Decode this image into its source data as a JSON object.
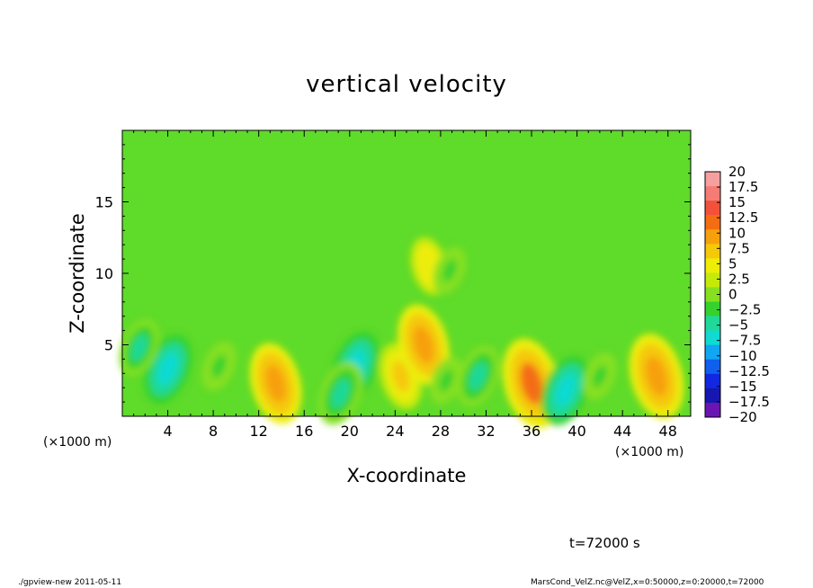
{
  "chart_data": {
    "type": "heatmap",
    "title": "vertical velocity",
    "xlabel": "X-coordinate",
    "ylabel": "Z-coordinate",
    "x_unit_label": "(×1000 m)",
    "y_unit_label": "(×1000 m)",
    "xlim": [
      0,
      50
    ],
    "ylim": [
      0,
      20
    ],
    "x_ticks": [
      "4",
      "8",
      "12",
      "16",
      "20",
      "24",
      "28",
      "32",
      "36",
      "40",
      "44",
      "48"
    ],
    "y_ticks": [
      "5",
      "10",
      "15"
    ],
    "colorbar": {
      "labels": [
        "20",
        "17.5",
        "15",
        "12.5",
        "10",
        "7.5",
        "5",
        "2.5",
        "0",
        "−2.5",
        "−5",
        "−7.5",
        "−10",
        "−12.5",
        "−15",
        "−17.5",
        "−20"
      ],
      "colors": [
        "#f59f9f",
        "#f57c74",
        "#f4513a",
        "#f46d12",
        "#f7a00d",
        "#f5c80a",
        "#eded08",
        "#c4ea0a",
        "#86e020",
        "#35d22e",
        "#1ed99a",
        "#10dad2",
        "#10a6f1",
        "#1060f0",
        "#1028e0",
        "#1616b0",
        "#6a14b2"
      ]
    },
    "features": [
      {
        "x": 4.0,
        "z": 3.3,
        "value": -8
      },
      {
        "x": 1.5,
        "z": 4.8,
        "value": -5
      },
      {
        "x": 13.5,
        "z": 2.3,
        "value": 9
      },
      {
        "x": 8.5,
        "z": 3.5,
        "value": -3.5
      },
      {
        "x": 20.5,
        "z": 3.5,
        "value": -8
      },
      {
        "x": 19.2,
        "z": 1.6,
        "value": -6.5
      },
      {
        "x": 24.5,
        "z": 2.8,
        "value": 6
      },
      {
        "x": 26.5,
        "z": 5.0,
        "value": 9
      },
      {
        "x": 28.5,
        "z": 2.5,
        "value": -3
      },
      {
        "x": 31.3,
        "z": 2.8,
        "value": -6
      },
      {
        "x": 36.0,
        "z": 2.3,
        "value": 11
      },
      {
        "x": 39.0,
        "z": 1.8,
        "value": -8
      },
      {
        "x": 42.0,
        "z": 2.8,
        "value": -3
      },
      {
        "x": 47.0,
        "z": 2.8,
        "value": 10
      },
      {
        "x": 27.0,
        "z": 10.5,
        "value": 4
      },
      {
        "x": 28.8,
        "z": 10.2,
        "value": -3
      }
    ]
  },
  "annotations": {
    "time_label": "t=72000 s",
    "footer_left": "./gpview-new  2011-05-11",
    "footer_right": "MarsCond_VelZ.nc@VelZ,x=0:50000,z=0:20000,t=72000"
  }
}
